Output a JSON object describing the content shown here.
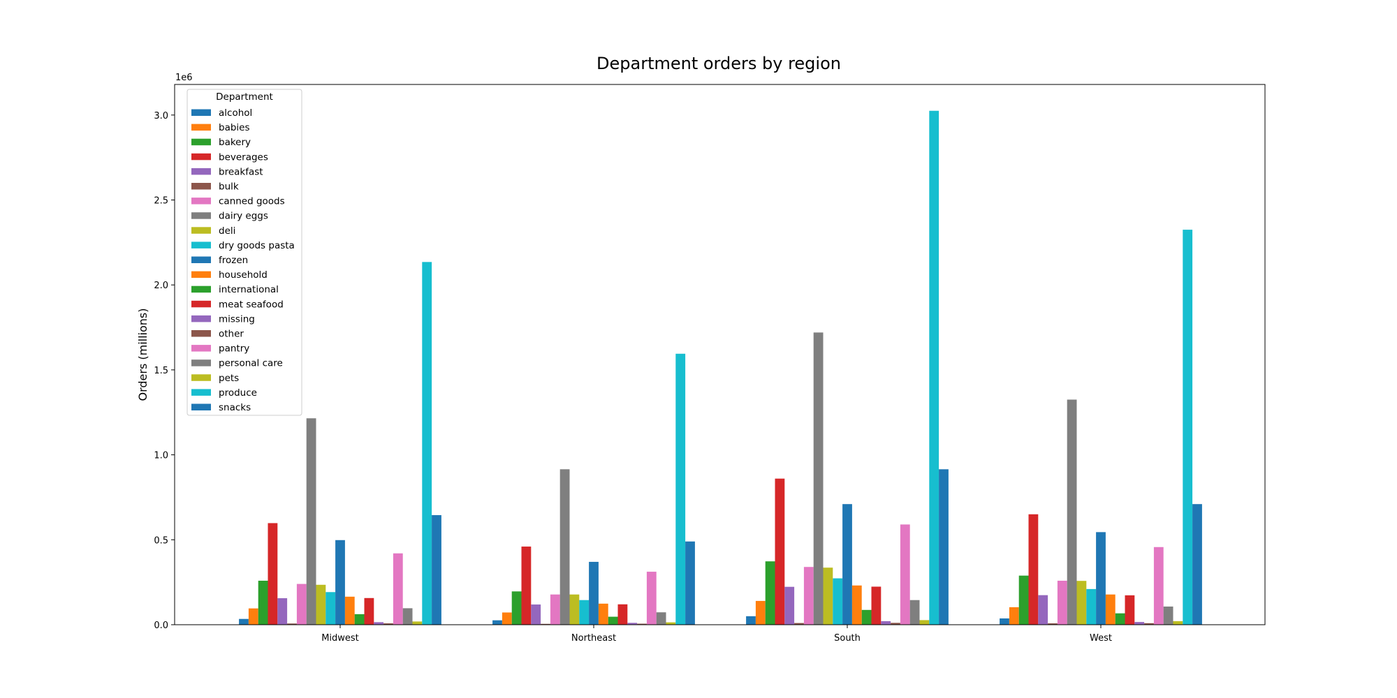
{
  "chart_data": {
    "type": "bar",
    "title": "Department orders by region",
    "xlabel": "",
    "ylabel": "Orders (millions)",
    "y_offset_text": "1e6",
    "ylim": [
      0,
      3180000
    ],
    "yticks": [
      0,
      500000,
      1000000,
      1500000,
      2000000,
      2500000,
      3000000
    ],
    "ytick_labels": [
      "0.0",
      "0.5",
      "1.0",
      "1.5",
      "2.0",
      "2.5",
      "3.0"
    ],
    "categories": [
      "Midwest",
      "Northeast",
      "South",
      "West"
    ],
    "legend": {
      "title": "Department",
      "placement": "top-left"
    },
    "grid": false,
    "series": [
      {
        "name": "alcohol",
        "color": "#1f77b4",
        "values": [
          34000,
          26000,
          50000,
          37000
        ]
      },
      {
        "name": "babies",
        "color": "#ff7f0e",
        "values": [
          96000,
          72000,
          140000,
          103000
        ]
      },
      {
        "name": "bakery",
        "color": "#2ca02c",
        "values": [
          259000,
          196000,
          373000,
          289000
        ]
      },
      {
        "name": "beverages",
        "color": "#d62728",
        "values": [
          598000,
          460000,
          860000,
          650000
        ]
      },
      {
        "name": "breakfast",
        "color": "#9467bd",
        "values": [
          156000,
          119000,
          223000,
          174000
        ]
      },
      {
        "name": "bulk",
        "color": "#8c564b",
        "values": [
          7000,
          5000,
          10000,
          8000
        ]
      },
      {
        "name": "canned goods",
        "color": "#e377c2",
        "values": [
          240000,
          178000,
          340000,
          259000
        ]
      },
      {
        "name": "dairy eggs",
        "color": "#7f7f7f",
        "values": [
          1215000,
          915000,
          1720000,
          1325000
        ]
      },
      {
        "name": "deli",
        "color": "#bcbd22",
        "values": [
          235000,
          178000,
          336000,
          258000
        ]
      },
      {
        "name": "dry goods pasta",
        "color": "#17becf",
        "values": [
          192000,
          145000,
          273000,
          210000
        ]
      },
      {
        "name": "frozen",
        "color": "#1f77b4",
        "values": [
          498000,
          370000,
          710000,
          545000
        ]
      },
      {
        "name": "household",
        "color": "#ff7f0e",
        "values": [
          165000,
          124000,
          231000,
          178000
        ]
      },
      {
        "name": "international",
        "color": "#2ca02c",
        "values": [
          62000,
          47000,
          87000,
          67000
        ]
      },
      {
        "name": "meat seafood",
        "color": "#d62728",
        "values": [
          157000,
          120000,
          224000,
          173000
        ]
      },
      {
        "name": "missing",
        "color": "#9467bd",
        "values": [
          15000,
          11000,
          21000,
          16000
        ]
      },
      {
        "name": "other",
        "color": "#8c564b",
        "values": [
          8000,
          6000,
          11000,
          9000
        ]
      },
      {
        "name": "pantry",
        "color": "#e377c2",
        "values": [
          420000,
          312000,
          590000,
          457000
        ]
      },
      {
        "name": "personal care",
        "color": "#7f7f7f",
        "values": [
          97000,
          73000,
          145000,
          107000
        ]
      },
      {
        "name": "pets",
        "color": "#bcbd22",
        "values": [
          19000,
          14000,
          27000,
          21000
        ]
      },
      {
        "name": "produce",
        "color": "#17becf",
        "values": [
          2135000,
          1595000,
          3025000,
          2325000
        ]
      },
      {
        "name": "snacks",
        "color": "#1f77b4",
        "values": [
          645000,
          490000,
          915000,
          710000
        ]
      }
    ]
  }
}
